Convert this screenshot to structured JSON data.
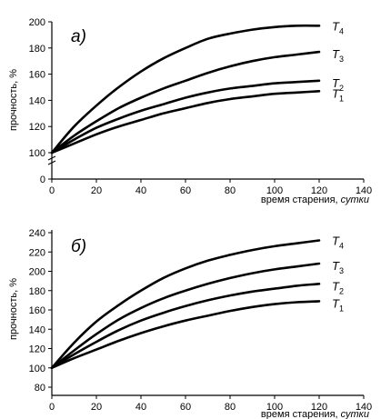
{
  "chart_data": [
    {
      "type": "line",
      "panel_label": "а)",
      "xlabel": "время старения,",
      "xlabel_unit": "сутки",
      "ylabel": "прочность, %",
      "xlim": [
        0,
        140
      ],
      "ylim": [
        0,
        200
      ],
      "x_ticks": [
        "0",
        "20",
        "40",
        "60",
        "80",
        "100",
        "120",
        "140"
      ],
      "y_ticks": [
        "0",
        "100",
        "120",
        "140",
        "160",
        "180",
        "200"
      ],
      "x": [
        0,
        10,
        20,
        30,
        40,
        50,
        60,
        70,
        80,
        90,
        100,
        110,
        120
      ],
      "series": [
        {
          "name": "T",
          "sub": "4",
          "values": [
            100,
            120,
            136,
            150,
            162,
            172,
            180,
            187,
            191,
            194,
            196,
            197,
            197
          ]
        },
        {
          "name": "T",
          "sub": "3",
          "values": [
            100,
            113,
            124,
            134,
            142,
            149,
            155,
            161,
            166,
            170,
            173,
            175,
            177
          ]
        },
        {
          "name": "T",
          "sub": "2",
          "values": [
            100,
            110,
            119,
            126,
            132,
            137,
            142,
            146,
            149,
            151,
            153,
            154,
            155
          ]
        },
        {
          "name": "T",
          "sub": "1",
          "values": [
            100,
            107,
            114,
            120,
            125,
            130,
            134,
            138,
            141,
            143,
            145,
            146,
            147
          ]
        }
      ],
      "grid": false
    },
    {
      "type": "line",
      "panel_label": "б)",
      "xlabel": "время старения,",
      "xlabel_unit": "сутки",
      "ylabel": "прочность, %",
      "xlim": [
        0,
        140
      ],
      "ylim": [
        80,
        240
      ],
      "x_ticks": [
        "0",
        "20",
        "40",
        "60",
        "80",
        "100",
        "120",
        "140"
      ],
      "y_ticks": [
        "80",
        "100",
        "120",
        "140",
        "160",
        "180",
        "200",
        "220",
        "240"
      ],
      "x": [
        0,
        10,
        20,
        30,
        40,
        50,
        60,
        70,
        80,
        90,
        100,
        110,
        120
      ],
      "series": [
        {
          "name": "T",
          "sub": "4",
          "values": [
            100,
            126,
            148,
            165,
            180,
            193,
            203,
            211,
            217,
            222,
            226,
            229,
            232
          ]
        },
        {
          "name": "T",
          "sub": "3",
          "values": [
            100,
            118,
            135,
            150,
            162,
            172,
            180,
            187,
            193,
            198,
            202,
            205,
            208
          ]
        },
        {
          "name": "T",
          "sub": "2",
          "values": [
            100,
            114,
            127,
            139,
            149,
            157,
            164,
            170,
            175,
            179,
            182,
            185,
            187
          ]
        },
        {
          "name": "T",
          "sub": "1",
          "values": [
            100,
            110,
            119,
            128,
            136,
            143,
            149,
            154,
            159,
            163,
            166,
            168,
            169
          ]
        }
      ],
      "grid": false
    }
  ]
}
